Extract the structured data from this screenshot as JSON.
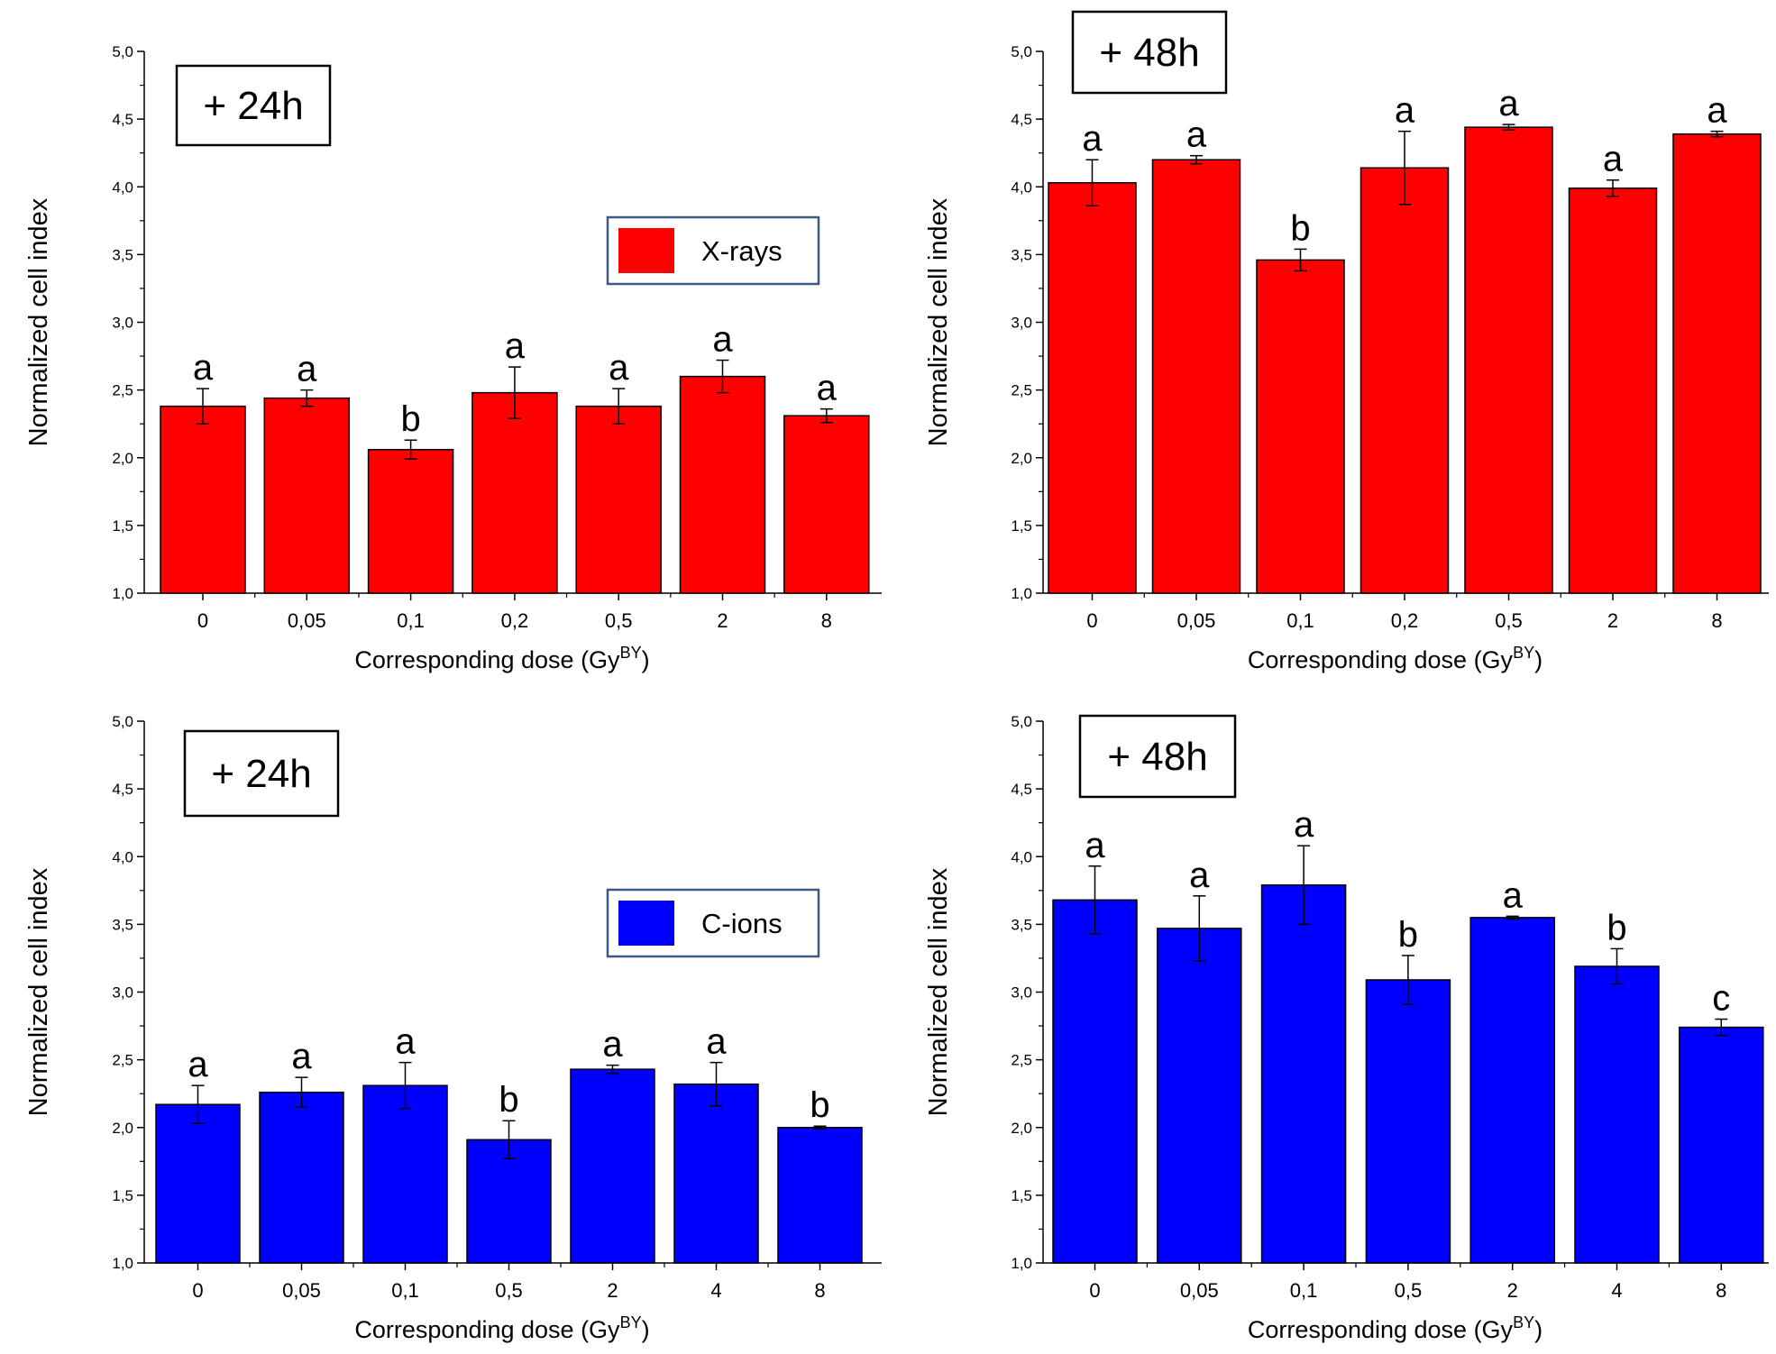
{
  "figure": {
    "y_axis_ticks": [
      "1,0",
      "1,5",
      "2,0",
      "2,5",
      "3,0",
      "3,5",
      "4,0",
      "4,5",
      "5,0"
    ]
  },
  "colors": {
    "xrays": "#ff0000",
    "cions": "#0000ff",
    "frame": "#3b5a80"
  },
  "chart_data": [
    {
      "type": "bar",
      "annotation": "+ 24h",
      "legend": {
        "label": "X-rays",
        "color": "#ff0000"
      },
      "ylabel": "Normalized cell index",
      "xlabel": "Corresponding dose (Gy",
      "xlabel_sup": "BY",
      "xlabel_end": ")",
      "ylim": [
        1.0,
        5.0
      ],
      "categories": [
        "0",
        "0,05",
        "0,1",
        "0,2",
        "0,5",
        "2",
        "8"
      ],
      "values": [
        2.38,
        2.44,
        2.06,
        2.48,
        2.38,
        2.6,
        2.31
      ],
      "errors": [
        0.13,
        0.06,
        0.07,
        0.19,
        0.13,
        0.12,
        0.05
      ],
      "letters": [
        "a",
        "a",
        "b",
        "a",
        "a",
        "a",
        "a"
      ]
    },
    {
      "type": "bar",
      "annotation": "+ 48h",
      "ylabel": "Normalized cell index",
      "xlabel": "Corresponding dose (Gy",
      "xlabel_sup": "BY",
      "xlabel_end": ")",
      "ylim": [
        1.0,
        5.0
      ],
      "color": "#ff0000",
      "categories": [
        "0",
        "0,05",
        "0,1",
        "0,2",
        "0,5",
        "2",
        "8"
      ],
      "values": [
        4.03,
        4.2,
        3.46,
        4.14,
        4.44,
        3.99,
        4.39
      ],
      "errors": [
        0.17,
        0.03,
        0.08,
        0.27,
        0.02,
        0.06,
        0.02
      ],
      "letters": [
        "a",
        "a",
        "b",
        "a",
        "a",
        "a",
        "a"
      ]
    },
    {
      "type": "bar",
      "annotation": "+ 24h",
      "legend": {
        "label": "C-ions",
        "color": "#0000ff"
      },
      "ylabel": "Normalized cell index",
      "xlabel": "Corresponding dose (Gy",
      "xlabel_sup": "BY",
      "xlabel_end": ")",
      "ylim": [
        1.0,
        5.0
      ],
      "categories": [
        "0",
        "0,05",
        "0,1",
        "0,5",
        "2",
        "4",
        "8"
      ],
      "values": [
        2.17,
        2.26,
        2.31,
        1.91,
        2.43,
        2.32,
        2.0
      ],
      "errors": [
        0.14,
        0.11,
        0.17,
        0.14,
        0.03,
        0.16,
        0.01
      ],
      "letters": [
        "a",
        "a",
        "a",
        "b",
        "a",
        "a",
        "b"
      ]
    },
    {
      "type": "bar",
      "annotation": "+ 48h",
      "ylabel": "Normalized cell index",
      "xlabel": "Corresponding dose (Gy",
      "xlabel_sup": "BY",
      "xlabel_end": ")",
      "ylim": [
        1.0,
        5.0
      ],
      "color": "#0000ff",
      "categories": [
        "0",
        "0,05",
        "0,1",
        "0,5",
        "2",
        "4",
        "8"
      ],
      "values": [
        3.68,
        3.47,
        3.79,
        3.09,
        3.55,
        3.19,
        2.74
      ],
      "errors": [
        0.25,
        0.24,
        0.29,
        0.18,
        0.01,
        0.13,
        0.06
      ],
      "letters": [
        "a",
        "a",
        "a",
        "b",
        "a",
        "b",
        "c"
      ]
    }
  ]
}
